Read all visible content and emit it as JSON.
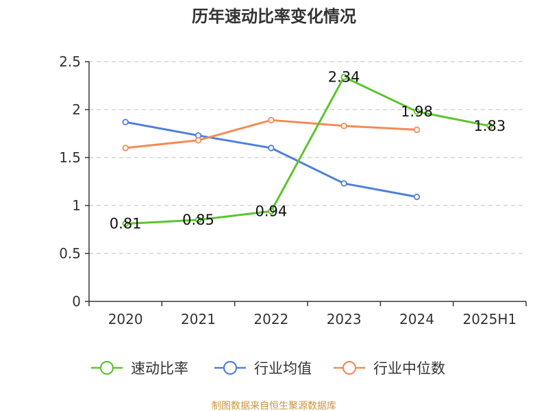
{
  "chart_data": {
    "type": "line",
    "title": "历年速动比率变化情况",
    "categories": [
      "2020",
      "2021",
      "2022",
      "2023",
      "2024",
      "2025H1"
    ],
    "ylim": [
      0,
      2.5
    ],
    "yticks": [
      "0",
      "0.5",
      "1",
      "1.5",
      "2",
      "2.5"
    ],
    "grid": true,
    "legend_position": "bottom",
    "series": [
      {
        "name": "速动比率",
        "color": "#5cc42e",
        "values": [
          0.81,
          0.85,
          0.94,
          2.34,
          1.98,
          1.83
        ],
        "labels": [
          "0.81",
          "0.85",
          "0.94",
          "2.34",
          "1.98",
          "1.83"
        ]
      },
      {
        "name": "行业均值",
        "color": "#4f7fdc",
        "values": [
          1.87,
          1.73,
          1.6,
          1.23,
          1.09,
          null
        ]
      },
      {
        "name": "行业中位数",
        "color": "#f58a55",
        "values": [
          1.6,
          1.68,
          1.89,
          1.83,
          1.79,
          null
        ]
      }
    ],
    "source": "制图数据来自恒生聚源数据库"
  }
}
